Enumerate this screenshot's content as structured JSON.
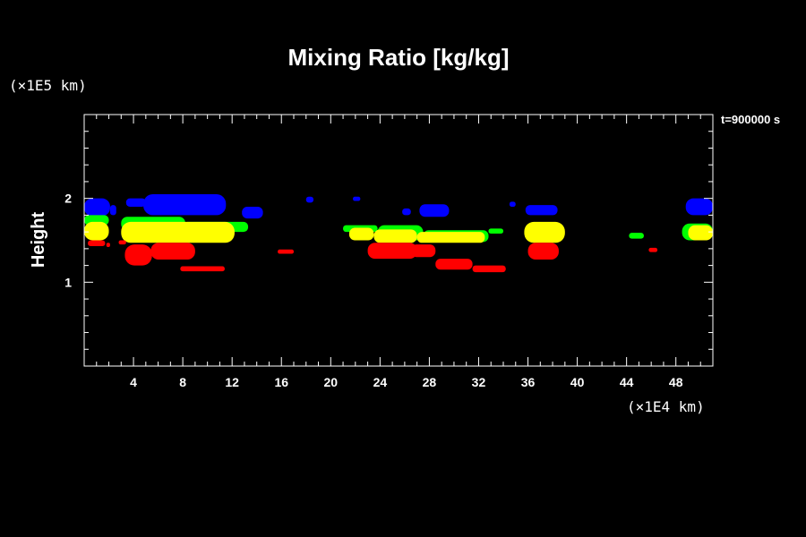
{
  "chart_data": {
    "type": "heatmap",
    "title": "Mixing Ratio [kg/kg]",
    "xlabel": "",
    "ylabel": "Height",
    "x_unit": "(×1E4 km)",
    "y_unit": "(×1E5 km)",
    "time_label": "t=900000 s",
    "xlim": [
      0,
      51
    ],
    "ylim": [
      0,
      3
    ],
    "x_ticks": [
      "4",
      "8",
      "12",
      "16",
      "20",
      "24",
      "28",
      "32",
      "36",
      "40",
      "44",
      "48"
    ],
    "y_ticks": [
      "1",
      "2"
    ],
    "grid": false,
    "colors": {
      "background": "#000000",
      "axis": "#ffffff",
      "layer_blue": "#0000ff",
      "layer_green": "#00ff00",
      "layer_yellow": "#ffff00",
      "layer_red": "#ff0000"
    },
    "regions": [
      {
        "color": "blue",
        "x": [
          0.0,
          2.1
        ],
        "y": [
          1.79,
          2.0
        ]
      },
      {
        "color": "blue",
        "x": [
          2.1,
          2.6
        ],
        "y": [
          1.8,
          1.92
        ]
      },
      {
        "color": "blue",
        "x": [
          3.4,
          5.0
        ],
        "y": [
          1.9,
          2.0
        ]
      },
      {
        "color": "blue",
        "x": [
          4.8,
          11.5
        ],
        "y": [
          1.8,
          2.05
        ]
      },
      {
        "color": "blue",
        "x": [
          12.8,
          14.5
        ],
        "y": [
          1.76,
          1.9
        ]
      },
      {
        "color": "blue",
        "x": [
          18.0,
          18.6
        ],
        "y": [
          1.95,
          2.02
        ]
      },
      {
        "color": "blue",
        "x": [
          21.8,
          22.4
        ],
        "y": [
          1.97,
          2.02
        ]
      },
      {
        "color": "blue",
        "x": [
          25.8,
          26.5
        ],
        "y": [
          1.8,
          1.88
        ]
      },
      {
        "color": "blue",
        "x": [
          27.2,
          29.6
        ],
        "y": [
          1.78,
          1.93
        ]
      },
      {
        "color": "blue",
        "x": [
          34.5,
          35.0
        ],
        "y": [
          1.9,
          1.96
        ]
      },
      {
        "color": "blue",
        "x": [
          35.8,
          38.4
        ],
        "y": [
          1.8,
          1.92
        ]
      },
      {
        "color": "blue",
        "x": [
          48.8,
          51.0
        ],
        "y": [
          1.8,
          2.0
        ]
      },
      {
        "color": "green",
        "x": [
          0.0,
          2.0
        ],
        "y": [
          1.68,
          1.8
        ]
      },
      {
        "color": "green",
        "x": [
          3.0,
          8.2
        ],
        "y": [
          1.62,
          1.78
        ]
      },
      {
        "color": "green",
        "x": [
          8.0,
          13.3
        ],
        "y": [
          1.6,
          1.72
        ]
      },
      {
        "color": "green",
        "x": [
          21.0,
          23.8
        ],
        "y": [
          1.6,
          1.68
        ]
      },
      {
        "color": "green",
        "x": [
          23.8,
          27.5
        ],
        "y": [
          1.5,
          1.68
        ]
      },
      {
        "color": "green",
        "x": [
          27.5,
          32.8
        ],
        "y": [
          1.48,
          1.62
        ]
      },
      {
        "color": "green",
        "x": [
          32.8,
          34.0
        ],
        "y": [
          1.58,
          1.64
        ]
      },
      {
        "color": "green",
        "x": [
          44.2,
          45.4
        ],
        "y": [
          1.52,
          1.59
        ]
      },
      {
        "color": "green",
        "x": [
          48.5,
          51.0
        ],
        "y": [
          1.5,
          1.7
        ]
      },
      {
        "color": "yellow",
        "x": [
          0.0,
          2.0
        ],
        "y": [
          1.5,
          1.72
        ]
      },
      {
        "color": "yellow",
        "x": [
          3.0,
          12.2
        ],
        "y": [
          1.47,
          1.72
        ]
      },
      {
        "color": "yellow",
        "x": [
          21.5,
          23.5
        ],
        "y": [
          1.5,
          1.65
        ]
      },
      {
        "color": "yellow",
        "x": [
          23.5,
          27.0
        ],
        "y": [
          1.47,
          1.63
        ]
      },
      {
        "color": "yellow",
        "x": [
          27.0,
          32.5
        ],
        "y": [
          1.47,
          1.6
        ]
      },
      {
        "color": "yellow",
        "x": [
          35.7,
          39.0
        ],
        "y": [
          1.47,
          1.72
        ]
      },
      {
        "color": "yellow",
        "x": [
          49.0,
          51.0
        ],
        "y": [
          1.5,
          1.68
        ]
      },
      {
        "color": "red",
        "x": [
          0.3,
          1.7
        ],
        "y": [
          1.43,
          1.5
        ]
      },
      {
        "color": "red",
        "x": [
          1.8,
          2.1
        ],
        "y": [
          1.42,
          1.47
        ]
      },
      {
        "color": "red",
        "x": [
          2.8,
          3.4
        ],
        "y": [
          1.45,
          1.5
        ]
      },
      {
        "color": "red",
        "x": [
          3.3,
          5.5
        ],
        "y": [
          1.2,
          1.45
        ]
      },
      {
        "color": "red",
        "x": [
          5.4,
          9.0
        ],
        "y": [
          1.27,
          1.47
        ]
      },
      {
        "color": "red",
        "x": [
          7.8,
          11.4
        ],
        "y": [
          1.13,
          1.19
        ]
      },
      {
        "color": "red",
        "x": [
          15.7,
          17.0
        ],
        "y": [
          1.34,
          1.39
        ]
      },
      {
        "color": "red",
        "x": [
          23.0,
          27.0
        ],
        "y": [
          1.28,
          1.47
        ]
      },
      {
        "color": "red",
        "x": [
          26.5,
          28.5
        ],
        "y": [
          1.3,
          1.45
        ]
      },
      {
        "color": "red",
        "x": [
          28.5,
          31.5
        ],
        "y": [
          1.15,
          1.28
        ]
      },
      {
        "color": "red",
        "x": [
          31.5,
          34.2
        ],
        "y": [
          1.12,
          1.2
        ]
      },
      {
        "color": "red",
        "x": [
          36.0,
          38.5
        ],
        "y": [
          1.27,
          1.47
        ]
      },
      {
        "color": "red",
        "x": [
          45.8,
          46.5
        ],
        "y": [
          1.36,
          1.41
        ]
      }
    ]
  }
}
